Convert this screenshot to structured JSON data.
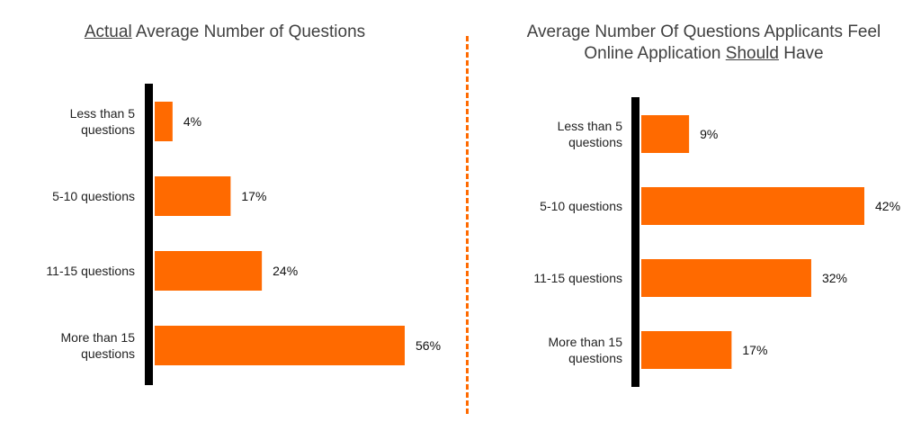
{
  "colors": {
    "bar": "#ff6a00",
    "axis": "#000000",
    "divider": "#ff6a00"
  },
  "chart_data": [
    {
      "type": "bar",
      "orientation": "horizontal",
      "title_parts": [
        {
          "text": "Actual",
          "underline": true
        },
        {
          "text": " Average Number of Questions",
          "underline": false
        }
      ],
      "categories": [
        [
          "Less than 5",
          "questions"
        ],
        [
          "5-10 questions"
        ],
        [
          "11-15 questions"
        ],
        [
          "More than 15",
          "questions"
        ]
      ],
      "values": [
        4,
        17,
        24,
        56
      ],
      "value_labels": [
        "4%",
        "17%",
        "24%",
        "56%"
      ],
      "xlim": [
        0,
        56
      ]
    },
    {
      "type": "bar",
      "orientation": "horizontal",
      "title_parts": [
        {
          "text": "Average Number Of Questions Applicants Feel",
          "underline": false,
          "newline": true
        },
        {
          "text": "Online Application ",
          "underline": false
        },
        {
          "text": "Should",
          "underline": true
        },
        {
          "text": " Have",
          "underline": false
        }
      ],
      "categories": [
        [
          "Less than 5",
          "questions"
        ],
        [
          "5-10 questions"
        ],
        [
          "11-15 questions"
        ],
        [
          "More than 15",
          "questions"
        ]
      ],
      "values": [
        9,
        42,
        32,
        17
      ],
      "value_labels": [
        "9%",
        "42%",
        "32%",
        "17%"
      ],
      "xlim": [
        0,
        42
      ]
    }
  ]
}
